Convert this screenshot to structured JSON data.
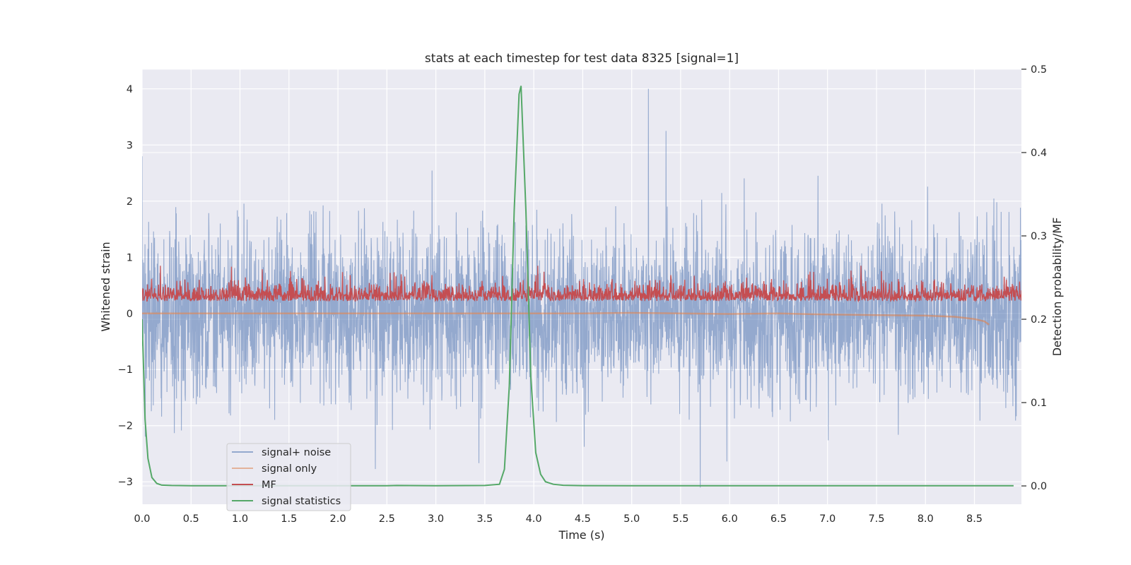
{
  "chart_data": {
    "type": "line",
    "title": "stats at each timestep for test data 8325 [signal=1]",
    "xlabel": "Time (s)",
    "ylabel_left": "Whitened strain",
    "ylabel_right": "Detection probability/MF",
    "xlim": [
      0.0,
      8.98
    ],
    "ylim_left": [
      -3.4,
      4.35
    ],
    "ylim_right": [
      -0.022,
      0.5
    ],
    "x_ticks": [
      "0.0",
      "0.5",
      "1.0",
      "1.5",
      "2.0",
      "2.5",
      "3.0",
      "3.5",
      "4.0",
      "4.5",
      "5.0",
      "5.5",
      "6.0",
      "6.5",
      "7.0",
      "7.5",
      "8.0",
      "8.5"
    ],
    "y_left_ticks": [
      "4",
      "3",
      "2",
      "1",
      "0",
      "−1",
      "−2",
      "−3"
    ],
    "y_right_ticks": [
      "0.5",
      "0.4",
      "0.3",
      "0.2",
      "0.1",
      "0.0"
    ],
    "grid": true,
    "legend_position": "lower-left",
    "series": [
      {
        "name": "signal+ noise",
        "axis": "left",
        "color": "#4c72b0",
        "description": "dense whitened noise, approx. range -3.1 to 4.0",
        "notable_points": [
          {
            "x": 0.0,
            "y": 2.8
          },
          {
            "x": 5.17,
            "y": 4.0
          },
          {
            "x": 5.35,
            "y": 3.25
          },
          {
            "x": 5.7,
            "y": -3.1
          }
        ]
      },
      {
        "name": "signal only",
        "axis": "left",
        "color": "#dd8452",
        "x": [
          0.0,
          4.5,
          5.0,
          5.5,
          6.0,
          6.5,
          7.0,
          7.5,
          8.0,
          8.3,
          8.5,
          8.6,
          8.65
        ],
        "y": [
          0.0,
          0.0,
          0.01,
          0.0,
          -0.01,
          0.0,
          -0.02,
          -0.03,
          -0.04,
          -0.06,
          -0.1,
          -0.14,
          -0.2
        ]
      },
      {
        "name": "MF",
        "axis": "left",
        "color": "#c44e52",
        "description": "noisy band approx. 0.05 to 0.85 over full duration"
      },
      {
        "name": "signal statistics",
        "axis": "right",
        "color": "#55a868",
        "x": [
          0.0,
          0.03,
          0.06,
          0.1,
          0.15,
          0.2,
          0.3,
          0.5,
          1.0,
          1.5,
          2.0,
          2.5,
          2.6,
          3.0,
          3.5,
          3.65,
          3.7,
          3.75,
          3.8,
          3.85,
          3.87,
          3.92,
          3.97,
          4.02,
          4.07,
          4.12,
          4.2,
          4.3,
          4.5,
          5.0,
          6.0,
          7.0,
          8.0,
          8.9
        ],
        "y": [
          0.2,
          0.08,
          0.033,
          0.01,
          0.003,
          0.001,
          0.0005,
          0.0003,
          0.0003,
          0.0003,
          0.0003,
          0.0003,
          0.0005,
          0.0003,
          0.0005,
          0.002,
          0.02,
          0.12,
          0.33,
          0.47,
          0.48,
          0.33,
          0.13,
          0.04,
          0.014,
          0.005,
          0.002,
          0.0008,
          0.0004,
          0.0003,
          0.0003,
          0.0003,
          0.0003,
          0.0003
        ]
      }
    ]
  }
}
